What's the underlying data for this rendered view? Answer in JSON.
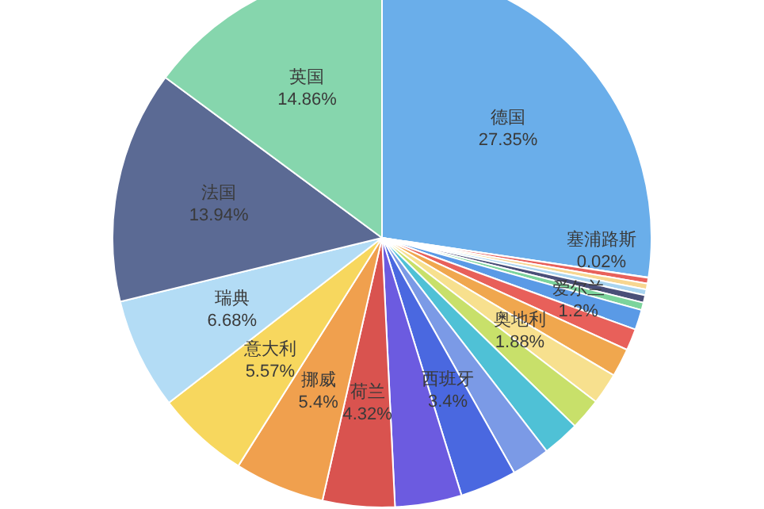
{
  "chart_data": {
    "type": "pie",
    "categories": [
      "德国",
      "塞浦路斯",
      null,
      null,
      null,
      null,
      null,
      "爱尔兰",
      null,
      null,
      "奥地利",
      null,
      null,
      null,
      "西班牙",
      null,
      "荷兰",
      "挪威",
      "意大利",
      "瑞典",
      "法国",
      "英国"
    ],
    "values": [
      27.35,
      0.02,
      0.35,
      0.35,
      0.35,
      0.45,
      0.45,
      1.2,
      1.3,
      1.7,
      1.88,
      1.9,
      2.23,
      2.3,
      3.4,
      4.0,
      4.32,
      5.4,
      5.57,
      6.68,
      13.94,
      14.86
    ],
    "colors": [
      "#6aaeea",
      "#f4a8a8",
      "#e8605a",
      "#f7d690",
      "#a9d4f0",
      "#4a4f78",
      "#7cd49c",
      "#5a9ae6",
      "#e8605a",
      "#f0a74e",
      "#f7e08e",
      "#c8e06a",
      "#4fc1d6",
      "#7b9ae6",
      "#4a68e0",
      "#6c5be0",
      "#d9534f",
      "#f0a04e",
      "#f7d75e",
      "#b3dcf5",
      "#5b6a94",
      "#86d6ad"
    ],
    "data_labels": true,
    "value_labels": [
      "27.35%",
      "0.02%",
      null,
      null,
      null,
      null,
      null,
      "1.2%",
      null,
      null,
      "1.88%",
      null,
      null,
      null,
      "3.4%",
      null,
      "4.32%",
      "5.4%",
      "5.57%",
      "6.68%",
      "13.94%",
      "14.86%"
    ]
  }
}
